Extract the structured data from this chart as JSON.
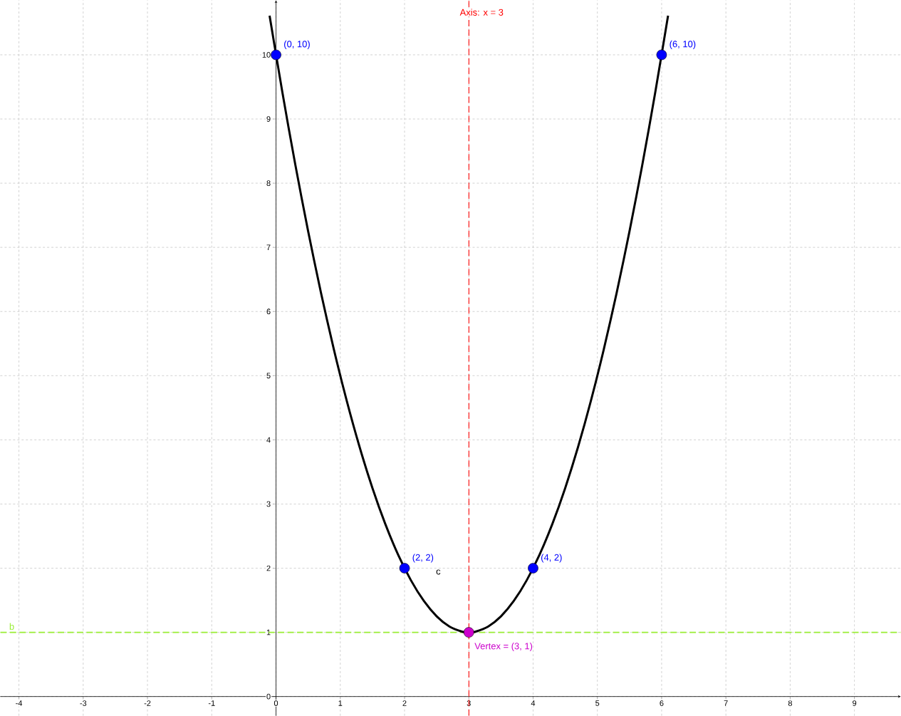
{
  "chart_data": {
    "type": "line",
    "xlim": [
      -4.29,
      9.72
    ],
    "ylim": [
      -0.3,
      10.85
    ],
    "xticks": [
      {
        "value": -4,
        "label": "-4"
      },
      {
        "value": -3,
        "label": "-3"
      },
      {
        "value": -2,
        "label": "-2"
      },
      {
        "value": -1,
        "label": "-1"
      },
      0,
      1,
      2,
      3,
      4,
      5,
      6,
      7,
      8,
      9
    ],
    "yticks": [
      0,
      1,
      2,
      3,
      4,
      5,
      6,
      7,
      8,
      9,
      10
    ],
    "grid": true,
    "series": [
      {
        "color": "#000000",
        "marker": "none",
        "x": [
          -0.1,
          0.1,
          0.3,
          0.5,
          0.7,
          0.9,
          1.1,
          1.3,
          1.5,
          1.7,
          1.9,
          2.1,
          2.3,
          2.5,
          2.7,
          2.9,
          3.0,
          3.1,
          3.3,
          3.5,
          3.7,
          3.9,
          4.1,
          4.3,
          4.5,
          4.7,
          4.9,
          5.1,
          5.3,
          5.5,
          5.7,
          5.9,
          6.1
        ],
        "values": [
          10.61,
          9.41,
          8.29,
          7.25,
          6.29,
          5.41,
          4.61,
          3.89,
          3.25,
          2.69,
          2.21,
          1.81,
          1.49,
          1.25,
          1.09,
          1.01,
          1.0,
          1.01,
          1.09,
          1.25,
          1.49,
          1.81,
          2.21,
          2.69,
          3.25,
          3.89,
          4.61,
          5.41,
          6.29,
          7.25,
          8.29,
          9.41,
          10.61
        ]
      },
      {
        "type": "scatter",
        "color": "#0000ff",
        "marker": "circle",
        "x": [
          0,
          2,
          4,
          6
        ],
        "values": [
          10,
          2,
          2,
          10
        ]
      },
      {
        "type": "scatter",
        "color": "#cc00cc",
        "marker": "circle",
        "x": [
          3
        ],
        "values": [
          1
        ]
      }
    ],
    "ref_lines": [
      {
        "axis": "x",
        "value": 3,
        "label": "Axis: x = 3",
        "color": "#ff0000",
        "line_style": "dashed"
      },
      {
        "axis": "y",
        "value": 1,
        "label": "b",
        "color": "#99ee33",
        "line_style": "dashed"
      }
    ],
    "annotations": [
      {
        "text": "(0, 10)",
        "x": 0,
        "y": 10
      },
      {
        "text": "(6, 10)",
        "x": 6,
        "y": 10
      },
      {
        "text": "(2, 2)",
        "x": 2,
        "y": 2
      },
      {
        "text": "(4, 2)",
        "x": 4,
        "y": 2
      },
      "c",
      {
        "text": "Vertex = (3, 1)",
        "x": 3,
        "y": 1
      }
    ]
  }
}
